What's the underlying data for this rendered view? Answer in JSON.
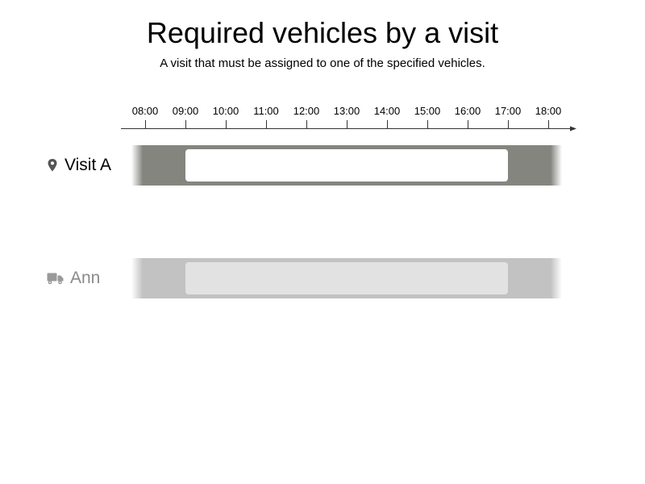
{
  "title": "Required vehicles by a visit",
  "subtitle": "A visit that must be assigned to one of the specified vehicles.",
  "timeline": {
    "ticks": [
      "08:00",
      "09:00",
      "10:00",
      "11:00",
      "12:00",
      "13:00",
      "14:00",
      "15:00",
      "16:00",
      "17:00",
      "18:00"
    ]
  },
  "rows": [
    {
      "id": "visit-a",
      "label": "Visit A",
      "icon": "map-pin-icon",
      "label_color": "#000000",
      "icon_color": "#555555",
      "lane_color": "#858580",
      "window_color": "#ffffff",
      "lane_range": [
        "07:40",
        "18:20"
      ],
      "window_range": [
        "09:00",
        "17:00"
      ]
    },
    {
      "id": "ann",
      "label": "Ann",
      "icon": "truck-icon",
      "label_color": "#8a8a8a",
      "icon_color": "#9a9a9a",
      "lane_color": "#c2c2c2",
      "window_color": "#e2e2e2",
      "lane_range": [
        "07:40",
        "18:20"
      ],
      "window_range": [
        "09:00",
        "17:00"
      ]
    }
  ]
}
